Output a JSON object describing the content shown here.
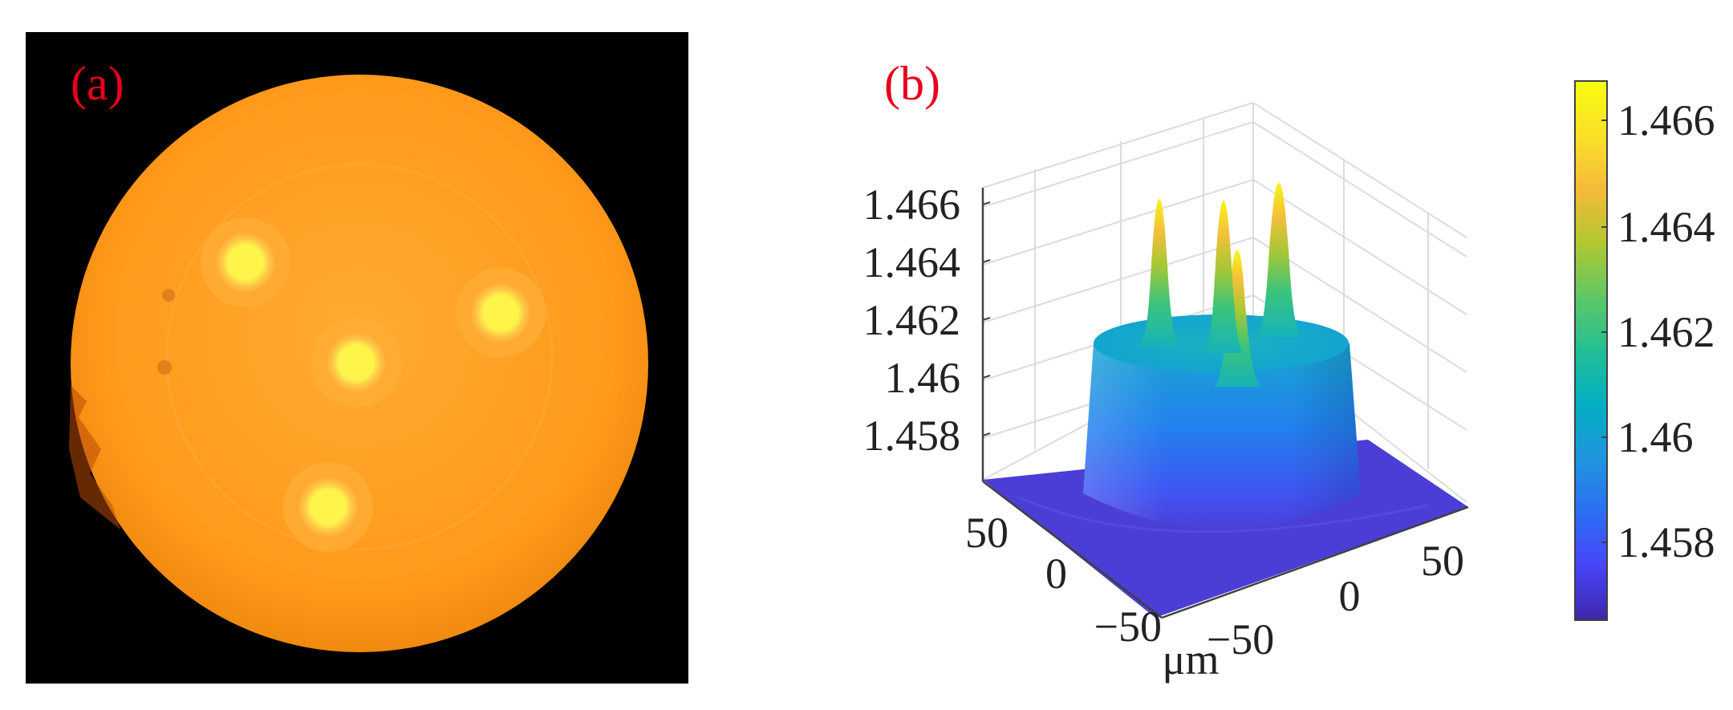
{
  "figure": {
    "panel_a": {
      "label": "(a)",
      "description_colors": {
        "background": "#000000",
        "disk": "#ff9a1c",
        "core": "#fff24a",
        "label": "#e8001c"
      }
    },
    "panel_b": {
      "label": "(b)",
      "label_color": "#e8001c"
    }
  },
  "chart_data": [
    {
      "type": "surface",
      "title": "",
      "panel": "(b)",
      "zlabel": "",
      "xlabel": "μm",
      "ylabel": "",
      "x_ticks": [
        -50,
        0,
        50
      ],
      "x_tick_labels": [
        "−50",
        "0",
        "50"
      ],
      "y_ticks": [
        -50,
        0,
        50
      ],
      "y_tick_labels": [
        "−50",
        "0",
        "50"
      ],
      "z_ticks": [
        1.458,
        1.46,
        1.462,
        1.464,
        1.466
      ],
      "z_tick_labels": [
        "1.458",
        "1.46",
        "1.462",
        "1.464",
        "1.466"
      ],
      "xlim": [
        -75,
        75
      ],
      "ylim": [
        -75,
        75
      ],
      "zlim": [
        1.457,
        1.4665
      ],
      "background_index": 1.4571,
      "cladding": {
        "radius_um": 40,
        "top_index": 1.4618,
        "profile": "step"
      },
      "cores": [
        {
          "name": "core-1",
          "x_um": -18,
          "y_um": 18,
          "peak_index": 1.4658
        },
        {
          "name": "core-2",
          "x_um": 2,
          "y_um": 6,
          "peak_index": 1.4655
        },
        {
          "name": "core-3",
          "x_um": 22,
          "y_um": 22,
          "peak_index": 1.4662
        },
        {
          "name": "core-4",
          "x_um": 2,
          "y_um": -8,
          "peak_index": 1.4642
        }
      ],
      "colorbar": {
        "ticks": [
          1.458,
          1.46,
          1.462,
          1.464,
          1.466
        ],
        "tick_labels": [
          "1.458",
          "1.46",
          "1.462",
          "1.464",
          "1.466"
        ],
        "range": [
          1.4565,
          1.4667
        ],
        "colormap": "parula",
        "colors": [
          "#3e26a8",
          "#4745f8",
          "#2c6ef4",
          "#1f96de",
          "#02aec2",
          "#22bf95",
          "#5fc864",
          "#b2c730",
          "#f6ba39",
          "#fae227",
          "#f9fb0e"
        ]
      },
      "grid": true
    }
  ]
}
